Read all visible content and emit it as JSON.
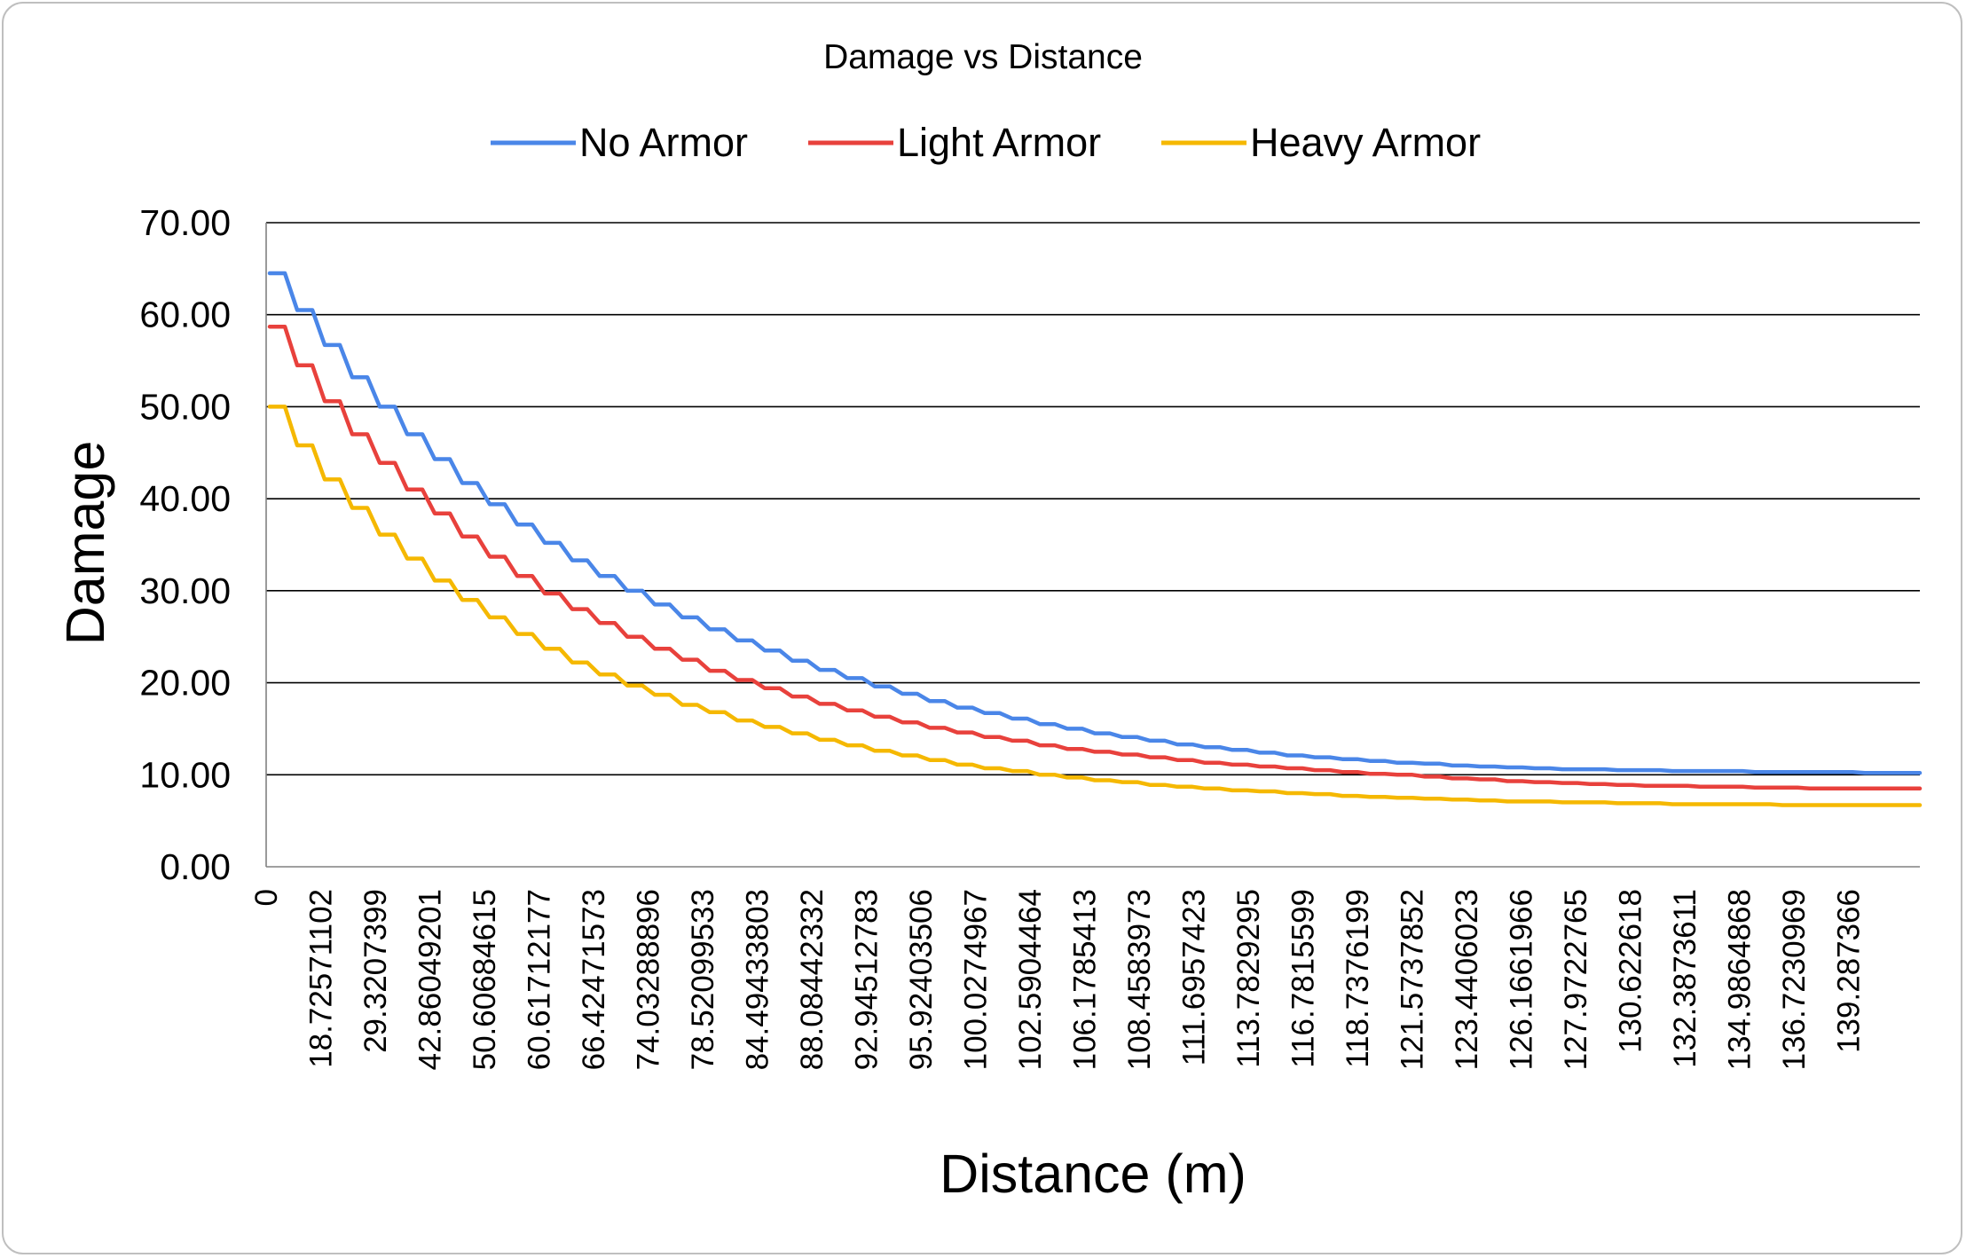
{
  "chart_data": {
    "type": "line",
    "title": "Damage vs Distance",
    "xlabel": "Distance (m)",
    "ylabel": "Damage",
    "ylim": [
      0,
      70
    ],
    "yticks": [
      "0.00",
      "10.00",
      "20.00",
      "30.00",
      "40.00",
      "50.00",
      "60.00",
      "70.00"
    ],
    "x_tick_labels": [
      "0",
      "18.72571102",
      "29.3207399",
      "42.86049201",
      "50.60684615",
      "60.61712177",
      "66.42471573",
      "74.03288896",
      "78.52099533",
      "84.49433803",
      "88.08442332",
      "92.94512783",
      "95.92403506",
      "100.0274967",
      "102.5904464",
      "106.1785413",
      "108.4583973",
      "111.6957423",
      "113.7829295",
      "116.7815599",
      "118.7376199",
      "121.5737852",
      "123.4406023",
      "126.1661966",
      "127.9722765",
      "130.622618",
      "132.3873611",
      "134.9864868",
      "136.7230969",
      "139.287366"
    ],
    "legend_position": "top",
    "grid": true,
    "series": [
      {
        "name": "No Armor",
        "color": "#4a86e8",
        "values": [
          64.5,
          60.5,
          56.7,
          53.2,
          50.0,
          47.0,
          44.3,
          41.7,
          39.4,
          37.2,
          35.2,
          33.3,
          31.6,
          30.0,
          28.5,
          27.1,
          25.8,
          24.6,
          23.5,
          22.4,
          21.4,
          20.5,
          19.6,
          18.8,
          18.0,
          17.3,
          16.7,
          16.1,
          15.5,
          15.0,
          14.5,
          14.1,
          13.7,
          13.3,
          13.0,
          12.7,
          12.4,
          12.1,
          11.9,
          11.7,
          11.5,
          11.3,
          11.2,
          11.0,
          10.9,
          10.8,
          10.7,
          10.6,
          10.6,
          10.5,
          10.5,
          10.4,
          10.4,
          10.4,
          10.3,
          10.3,
          10.3,
          10.3,
          10.2,
          10.2
        ]
      },
      {
        "name": "Light Armor",
        "color": "#e8413c",
        "values": [
          58.7,
          54.5,
          50.6,
          47.0,
          43.9,
          41.0,
          38.4,
          35.9,
          33.7,
          31.6,
          29.7,
          28.0,
          26.5,
          25.0,
          23.7,
          22.5,
          21.3,
          20.3,
          19.4,
          18.5,
          17.7,
          17.0,
          16.3,
          15.7,
          15.1,
          14.6,
          14.1,
          13.7,
          13.2,
          12.8,
          12.5,
          12.2,
          11.9,
          11.6,
          11.3,
          11.1,
          10.9,
          10.7,
          10.5,
          10.3,
          10.1,
          10.0,
          9.8,
          9.6,
          9.5,
          9.3,
          9.2,
          9.1,
          9.0,
          8.9,
          8.8,
          8.8,
          8.7,
          8.7,
          8.6,
          8.6,
          8.5,
          8.5,
          8.5,
          8.5
        ]
      },
      {
        "name": "Heavy Armor",
        "color": "#f5b800",
        "values": [
          50.0,
          45.8,
          42.1,
          39.0,
          36.1,
          33.5,
          31.1,
          29.0,
          27.1,
          25.3,
          23.7,
          22.2,
          20.9,
          19.7,
          18.7,
          17.6,
          16.8,
          15.9,
          15.2,
          14.5,
          13.8,
          13.2,
          12.6,
          12.1,
          11.6,
          11.1,
          10.7,
          10.4,
          10.0,
          9.7,
          9.4,
          9.2,
          8.9,
          8.7,
          8.5,
          8.3,
          8.2,
          8.0,
          7.9,
          7.7,
          7.6,
          7.5,
          7.4,
          7.3,
          7.2,
          7.1,
          7.1,
          7.0,
          7.0,
          6.9,
          6.9,
          6.8,
          6.8,
          6.8,
          6.8,
          6.7,
          6.7,
          6.7,
          6.7,
          6.7
        ]
      }
    ]
  }
}
